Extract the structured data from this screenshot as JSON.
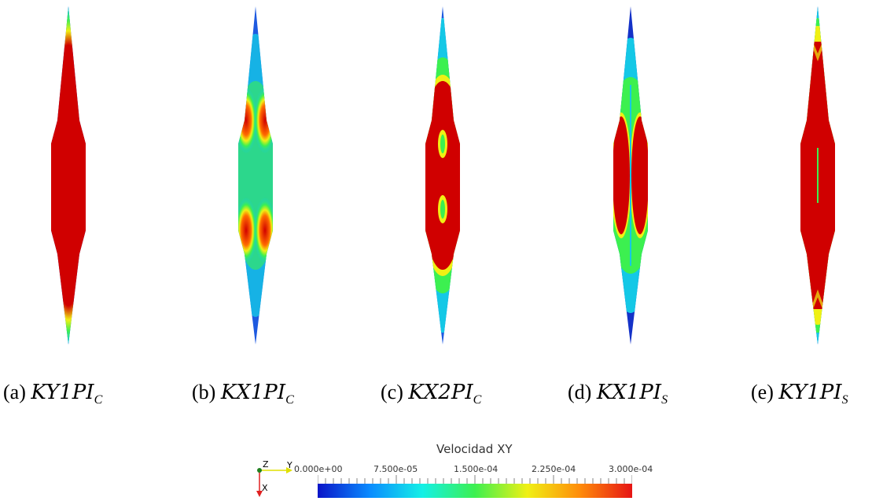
{
  "panels": [
    {
      "id": "a",
      "prefix": "(a)",
      "math": "KY1PI",
      "sub": "C"
    },
    {
      "id": "b",
      "prefix": "(b)",
      "math": "KX1PI",
      "sub": "C"
    },
    {
      "id": "c",
      "prefix": "(c)",
      "math": "KX2PI",
      "sub": "C"
    },
    {
      "id": "d",
      "prefix": "(d)",
      "math": "KX1PI",
      "sub": "S"
    },
    {
      "id": "e",
      "prefix": "(e)",
      "math": "KY1PI",
      "sub": "S"
    }
  ],
  "legend": {
    "title": "Velocidad XY",
    "ticks": [
      "0.000e+00",
      "7.500e-05",
      "1.500e-04",
      "2.250e-04",
      "3.000e-04"
    ],
    "colors": [
      "#0a14c8",
      "#0a8cff",
      "#14f0e6",
      "#3cf050",
      "#f0f014",
      "#ff8c0a",
      "#e61414"
    ]
  },
  "axes": {
    "z_label": "Z",
    "y_label": "Y",
    "x_label": "X"
  }
}
